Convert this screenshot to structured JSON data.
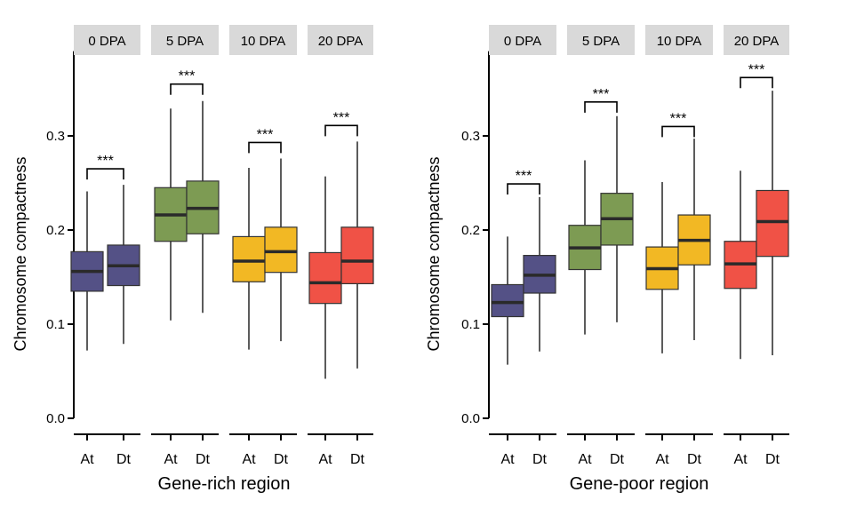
{
  "chart_data": [
    {
      "type": "boxplot",
      "xlabel": "Gene-rich region",
      "ylabel": "Chromosome compactness",
      "ylim": [
        -0.01,
        0.39
      ],
      "yticks": [
        0.0,
        0.1,
        0.2,
        0.3
      ],
      "ytick_labels": [
        "0.0",
        "0.1",
        "0.2",
        "0.3"
      ],
      "panels": [
        {
          "label": "0 DPA",
          "color": "#545186",
          "significance": "***",
          "bracket_y": 0.265,
          "boxes": [
            {
              "category": "At",
              "whisker_low": 0.072,
              "q1": 0.135,
              "median": 0.156,
              "q3": 0.177,
              "whisker_high": 0.241
            },
            {
              "category": "Dt",
              "whisker_low": 0.079,
              "q1": 0.141,
              "median": 0.162,
              "q3": 0.184,
              "whisker_high": 0.248
            }
          ]
        },
        {
          "label": "5 DPA",
          "color": "#7d9b53",
          "significance": "***",
          "bracket_y": 0.355,
          "boxes": [
            {
              "category": "At",
              "whisker_low": 0.104,
              "q1": 0.188,
              "median": 0.216,
              "q3": 0.245,
              "whisker_high": 0.329
            },
            {
              "category": "Dt",
              "whisker_low": 0.112,
              "q1": 0.196,
              "median": 0.223,
              "q3": 0.252,
              "whisker_high": 0.337
            }
          ]
        },
        {
          "label": "10 DPA",
          "color": "#f2b824",
          "significance": "***",
          "bracket_y": 0.293,
          "boxes": [
            {
              "category": "At",
              "whisker_low": 0.073,
              "q1": 0.145,
              "median": 0.167,
              "q3": 0.193,
              "whisker_high": 0.266
            },
            {
              "category": "Dt",
              "whisker_low": 0.082,
              "q1": 0.155,
              "median": 0.177,
              "q3": 0.203,
              "whisker_high": 0.276
            }
          ]
        },
        {
          "label": "20 DPA",
          "color": "#f05246",
          "significance": "***",
          "bracket_y": 0.311,
          "boxes": [
            {
              "category": "At",
              "whisker_low": 0.042,
              "q1": 0.122,
              "median": 0.144,
              "q3": 0.176,
              "whisker_high": 0.257
            },
            {
              "category": "Dt",
              "whisker_low": 0.053,
              "q1": 0.143,
              "median": 0.167,
              "q3": 0.203,
              "whisker_high": 0.294
            }
          ]
        }
      ]
    },
    {
      "type": "boxplot",
      "xlabel": "Gene-poor region",
      "ylabel": "Chromosome compactness",
      "ylim": [
        -0.01,
        0.39
      ],
      "yticks": [
        0.0,
        0.1,
        0.2,
        0.3
      ],
      "ytick_labels": [
        "0.0",
        "0.1",
        "0.2",
        "0.3"
      ],
      "panels": [
        {
          "label": "0 DPA",
          "color": "#545186",
          "significance": "***",
          "bracket_y": 0.249,
          "boxes": [
            {
              "category": "At",
              "whisker_low": 0.057,
              "q1": 0.108,
              "median": 0.123,
              "q3": 0.142,
              "whisker_high": 0.193
            },
            {
              "category": "Dt",
              "whisker_low": 0.071,
              "q1": 0.133,
              "median": 0.152,
              "q3": 0.173,
              "whisker_high": 0.235
            }
          ]
        },
        {
          "label": "5 DPA",
          "color": "#7d9b53",
          "significance": "***",
          "bracket_y": 0.336,
          "boxes": [
            {
              "category": "At",
              "whisker_low": 0.089,
              "q1": 0.158,
              "median": 0.181,
              "q3": 0.205,
              "whisker_high": 0.274
            },
            {
              "category": "Dt",
              "whisker_low": 0.102,
              "q1": 0.184,
              "median": 0.212,
              "q3": 0.239,
              "whisker_high": 0.321
            }
          ]
        },
        {
          "label": "10 DPA",
          "color": "#f2b824",
          "significance": "***",
          "bracket_y": 0.31,
          "boxes": [
            {
              "category": "At",
              "whisker_low": 0.069,
              "q1": 0.137,
              "median": 0.159,
              "q3": 0.182,
              "whisker_high": 0.251
            },
            {
              "category": "Dt",
              "whisker_low": 0.083,
              "q1": 0.163,
              "median": 0.189,
              "q3": 0.216,
              "whisker_high": 0.297
            }
          ]
        },
        {
          "label": "20 DPA",
          "color": "#f05246",
          "significance": "***",
          "bracket_y": 0.362,
          "boxes": [
            {
              "category": "At",
              "whisker_low": 0.063,
              "q1": 0.138,
              "median": 0.164,
              "q3": 0.188,
              "whisker_high": 0.263
            },
            {
              "category": "Dt",
              "whisker_low": 0.067,
              "q1": 0.172,
              "median": 0.209,
              "q3": 0.242,
              "whisker_high": 0.348
            }
          ]
        }
      ]
    }
  ]
}
